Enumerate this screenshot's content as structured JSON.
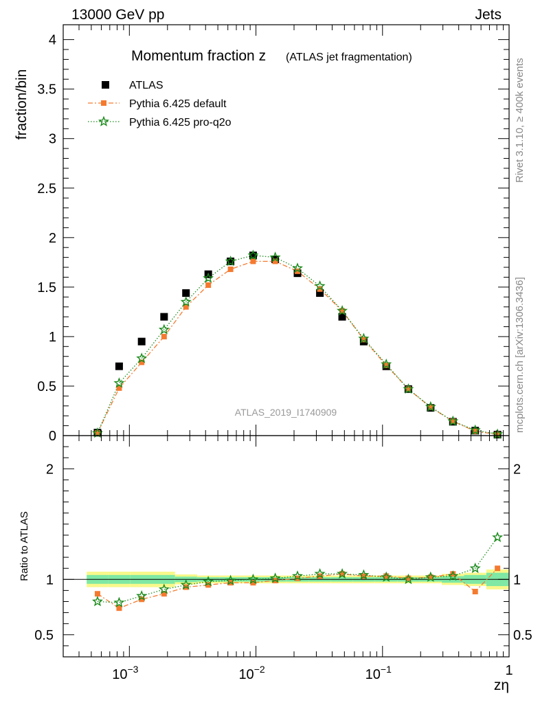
{
  "header": {
    "left": "13000 GeV pp",
    "right": "Jets"
  },
  "side_text": {
    "rivet": "Rivet 3.1.10, ≥ 400k events",
    "mcplots": "mcplots.cern.ch [arXiv:1306.3436]"
  },
  "chart_data": {
    "type": "scatter",
    "title_main": "Momentum fraction z",
    "title_sub": "(ATLAS jet fragmentation)",
    "analysis_label": "ATLAS_2019_I1740909",
    "xlabel": "zη",
    "ylabel": "fraction/bin",
    "ratio_ylabel": "Ratio to ATLAS",
    "x_scale": "log",
    "xlim": [
      0.0003,
      1
    ],
    "ylim": [
      0,
      4.15
    ],
    "ratio_ylim": [
      0.3,
      2.3
    ],
    "x_ticks": [
      {
        "base": "10",
        "exp": "−3",
        "value": 0.001
      },
      {
        "base": "10",
        "exp": "−2",
        "value": 0.01
      },
      {
        "base": "10",
        "exp": "−1",
        "value": 0.1
      },
      {
        "base": "1",
        "exp": "",
        "value": 1
      }
    ],
    "y_ticks": [
      "0",
      "0.5",
      "1",
      "1.5",
      "2",
      "2.5",
      "3",
      "3.5",
      "4"
    ],
    "ratio_y_ticks": [
      "0.5",
      "1",
      "2"
    ],
    "x": [
      0.00056,
      0.00083,
      0.00125,
      0.00188,
      0.0028,
      0.0042,
      0.0063,
      0.0095,
      0.0142,
      0.0213,
      0.032,
      0.048,
      0.071,
      0.107,
      0.16,
      0.24,
      0.36,
      0.54,
      0.81
    ],
    "series": [
      {
        "name": "ATLAS",
        "color": "#000000",
        "marker": "square",
        "values": [
          0.03,
          0.7,
          0.95,
          1.2,
          1.44,
          1.63,
          1.76,
          1.82,
          1.78,
          1.64,
          1.44,
          1.2,
          0.95,
          0.7,
          0.47,
          0.28,
          0.14,
          0.05,
          0.01
        ],
        "ratio": [
          1,
          1,
          1,
          1,
          1,
          1,
          1,
          1,
          1,
          1,
          1,
          1,
          1,
          1,
          1,
          1,
          1,
          1,
          1
        ]
      },
      {
        "name": "Pythia 6.425 default",
        "color": "#f47a30",
        "marker": "square-small",
        "line": "dashdot",
        "values": [
          0.026,
          0.48,
          0.74,
          1.0,
          1.3,
          1.52,
          1.68,
          1.76,
          1.76,
          1.66,
          1.48,
          1.26,
          0.97,
          0.71,
          0.47,
          0.285,
          0.145,
          0.044,
          0.011
        ],
        "ratio": [
          0.87,
          0.74,
          0.82,
          0.87,
          0.93,
          0.95,
          0.97,
          0.97,
          0.99,
          1.01,
          1.03,
          1.05,
          1.03,
          1.03,
          1.01,
          1.02,
          1.05,
          0.89,
          1.1
        ]
      },
      {
        "name": "Pythia 6.425 pro-q2o",
        "color": "#1a8a1a",
        "marker": "star",
        "line": "dotted",
        "values": [
          0.025,
          0.53,
          0.78,
          1.07,
          1.35,
          1.59,
          1.76,
          1.82,
          1.8,
          1.69,
          1.51,
          1.26,
          0.98,
          0.72,
          0.47,
          0.29,
          0.145,
          0.055,
          0.014
        ],
        "ratio": [
          0.8,
          0.79,
          0.85,
          0.91,
          0.95,
          0.98,
          0.99,
          1.0,
          1.01,
          1.03,
          1.05,
          1.05,
          1.04,
          1.02,
          1.0,
          1.02,
          1.03,
          1.1,
          1.38
        ]
      }
    ],
    "uncertainty_band": {
      "inner_color": "#7ee8a4",
      "outer_color": "#f8f88a",
      "inner": [
        0.04,
        0.04,
        0.04,
        0.04,
        0.025,
        0.02,
        0.02,
        0.02,
        0.02,
        0.02,
        0.02,
        0.02,
        0.02,
        0.02,
        0.02,
        0.02,
        0.03,
        0.04,
        0.06
      ],
      "outer": [
        0.07,
        0.07,
        0.07,
        0.07,
        0.045,
        0.035,
        0.035,
        0.035,
        0.035,
        0.035,
        0.035,
        0.035,
        0.035,
        0.035,
        0.035,
        0.035,
        0.05,
        0.06,
        0.09
      ]
    }
  }
}
